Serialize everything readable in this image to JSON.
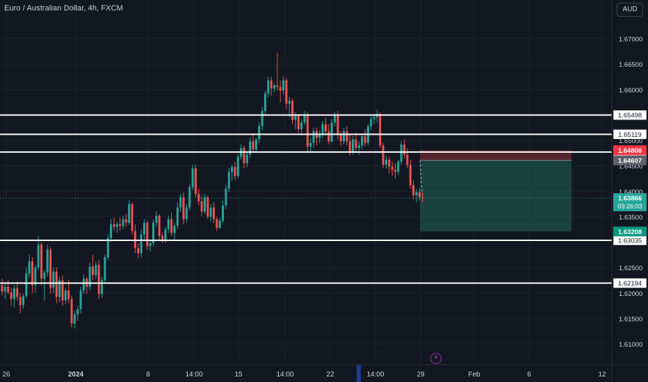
{
  "header": {
    "title": "Euro / Australian Dollar, 4h, FXCM",
    "currency": "AUD"
  },
  "toolbar": {
    "lightning_icon": "lightning-icon"
  },
  "colors": {
    "background": "#131722",
    "grid": "#1e222d",
    "axis_text": "#d1d4dc",
    "up": "#26a69a",
    "down": "#ef5350",
    "level_line": "#ffffff",
    "profit_zone": "#1e5e55",
    "loss_zone": "#6b2a33",
    "current_price_badge": "#26a69a",
    "stop_badge": "#f23645",
    "entry_badge": "#5d606b",
    "target_badge": "#089981"
  },
  "chart_data": {
    "type": "candlestick",
    "symbol": "Euro / Australian Dollar",
    "interval": "4h",
    "source": "FXCM",
    "ylim": [
      1.6085,
      1.6735
    ],
    "y_ticks": [
      "1.67000",
      "1.66500",
      "1.66000",
      "1.65000",
      "1.64500",
      "1.64000",
      "1.63500",
      "1.62500",
      "1.62000",
      "1.61500",
      "1.61000"
    ],
    "x_tick_labels": [
      "26",
      "2024",
      "8",
      "14:00",
      "15",
      "14:00",
      "22",
      "14:00",
      "29",
      "Feb",
      "6",
      "12"
    ],
    "horizontal_levels": [
      {
        "price": 1.65498,
        "label": "1.65498"
      },
      {
        "price": 1.65119,
        "label": "1.65119"
      },
      {
        "price": 1.6477,
        "label": "1.64770"
      },
      {
        "price": 1.63035,
        "label": "1.63035"
      },
      {
        "price": 1.62194,
        "label": "1.62194"
      }
    ],
    "position": {
      "type": "short",
      "stop": {
        "price": 1.64806,
        "label": "1.64806"
      },
      "entry": {
        "price": 1.64607,
        "label": "1.64607"
      },
      "target": {
        "price": 1.63208,
        "label": "1.63208"
      }
    },
    "current_price": {
      "price": 1.63866,
      "label": "1.63866",
      "countdown": "03:26:03"
    },
    "candles": [
      [
        1.6215,
        1.6228,
        1.6195,
        1.6203
      ],
      [
        1.6203,
        1.6218,
        1.6188,
        1.6212
      ],
      [
        1.6212,
        1.6225,
        1.6198,
        1.6201
      ],
      [
        1.6201,
        1.621,
        1.6175,
        1.6188
      ],
      [
        1.6188,
        1.6215,
        1.6172,
        1.6209
      ],
      [
        1.6209,
        1.6222,
        1.6185,
        1.6192
      ],
      [
        1.6192,
        1.62,
        1.616,
        1.6176
      ],
      [
        1.6176,
        1.6198,
        1.617,
        1.6194
      ],
      [
        1.6194,
        1.625,
        1.619,
        1.6238
      ],
      [
        1.6238,
        1.6275,
        1.623,
        1.6262
      ],
      [
        1.6262,
        1.627,
        1.62,
        1.6215
      ],
      [
        1.6215,
        1.6255,
        1.62,
        1.625
      ],
      [
        1.625,
        1.6312,
        1.6245,
        1.6295
      ],
      [
        1.6295,
        1.63,
        1.6215,
        1.6228
      ],
      [
        1.6228,
        1.6245,
        1.6185,
        1.624
      ],
      [
        1.624,
        1.6295,
        1.6232,
        1.6285
      ],
      [
        1.6285,
        1.629,
        1.6198,
        1.621
      ],
      [
        1.621,
        1.625,
        1.62,
        1.6242
      ],
      [
        1.6242,
        1.625,
        1.618,
        1.6192
      ],
      [
        1.6192,
        1.6232,
        1.6182,
        1.6225
      ],
      [
        1.6225,
        1.6235,
        1.6175,
        1.6185
      ],
      [
        1.6185,
        1.621,
        1.6178,
        1.6205
      ],
      [
        1.6205,
        1.6226,
        1.618,
        1.6188
      ],
      [
        1.6188,
        1.6195,
        1.6132,
        1.614
      ],
      [
        1.614,
        1.6165,
        1.613,
        1.6158
      ],
      [
        1.6158,
        1.6175,
        1.6145,
        1.6168
      ],
      [
        1.6168,
        1.6212,
        1.616,
        1.6205
      ],
      [
        1.6205,
        1.6238,
        1.6198,
        1.6228
      ],
      [
        1.6228,
        1.6232,
        1.6198,
        1.6212
      ],
      [
        1.6212,
        1.626,
        1.6205,
        1.6252
      ],
      [
        1.6252,
        1.6275,
        1.6225,
        1.6235
      ],
      [
        1.6235,
        1.6262,
        1.6228,
        1.6255
      ],
      [
        1.6255,
        1.6265,
        1.6188,
        1.6198
      ],
      [
        1.6198,
        1.6232,
        1.619,
        1.6225
      ],
      [
        1.6225,
        1.6275,
        1.622,
        1.627
      ],
      [
        1.627,
        1.6315,
        1.6265,
        1.6308
      ],
      [
        1.6308,
        1.6345,
        1.63,
        1.6335
      ],
      [
        1.6335,
        1.6348,
        1.6322,
        1.633
      ],
      [
        1.633,
        1.634,
        1.6318,
        1.6335
      ],
      [
        1.6335,
        1.6348,
        1.6322,
        1.6332
      ],
      [
        1.6332,
        1.6352,
        1.6325,
        1.6345
      ],
      [
        1.6345,
        1.6355,
        1.633,
        1.6338
      ],
      [
        1.6338,
        1.6382,
        1.6334,
        1.6375
      ],
      [
        1.6375,
        1.6378,
        1.6315,
        1.6322
      ],
      [
        1.6322,
        1.6335,
        1.6278,
        1.6288
      ],
      [
        1.6288,
        1.6298,
        1.6268,
        1.6278
      ],
      [
        1.6278,
        1.6325,
        1.627,
        1.6315
      ],
      [
        1.6315,
        1.6345,
        1.6305,
        1.6338
      ],
      [
        1.6338,
        1.6342,
        1.6285,
        1.6292
      ],
      [
        1.6292,
        1.6305,
        1.6282,
        1.6298
      ],
      [
        1.6298,
        1.6345,
        1.6292,
        1.6338
      ],
      [
        1.6338,
        1.636,
        1.633,
        1.6352
      ],
      [
        1.6352,
        1.6355,
        1.6305,
        1.6312
      ],
      [
        1.6312,
        1.6318,
        1.6298,
        1.6305
      ],
      [
        1.6305,
        1.633,
        1.6298,
        1.6325
      ],
      [
        1.6325,
        1.6352,
        1.6318,
        1.6345
      ],
      [
        1.6345,
        1.6358,
        1.6312,
        1.6318
      ],
      [
        1.6318,
        1.6338,
        1.6305,
        1.6332
      ],
      [
        1.6332,
        1.6378,
        1.6325,
        1.6368
      ],
      [
        1.6368,
        1.6395,
        1.636,
        1.6388
      ],
      [
        1.6388,
        1.6398,
        1.6335,
        1.6345
      ],
      [
        1.6345,
        1.6375,
        1.6338,
        1.6368
      ],
      [
        1.6368,
        1.6415,
        1.6362,
        1.6408
      ],
      [
        1.6408,
        1.6452,
        1.6402,
        1.6445
      ],
      [
        1.6445,
        1.6452,
        1.6388,
        1.6395
      ],
      [
        1.6395,
        1.6405,
        1.6372,
        1.638
      ],
      [
        1.638,
        1.6392,
        1.6352,
        1.636
      ],
      [
        1.636,
        1.6395,
        1.6355,
        1.6388
      ],
      [
        1.6388,
        1.6392,
        1.6345,
        1.635
      ],
      [
        1.635,
        1.6375,
        1.634,
        1.6368
      ],
      [
        1.6368,
        1.6378,
        1.6338,
        1.6345
      ],
      [
        1.6345,
        1.635,
        1.6322,
        1.6328
      ],
      [
        1.6328,
        1.6348,
        1.6325,
        1.6342
      ],
      [
        1.6342,
        1.6382,
        1.6338,
        1.6372
      ],
      [
        1.6372,
        1.6412,
        1.6365,
        1.6405
      ],
      [
        1.6405,
        1.6445,
        1.6398,
        1.6438
      ],
      [
        1.6438,
        1.6452,
        1.642,
        1.6448
      ],
      [
        1.6448,
        1.6458,
        1.6422,
        1.643
      ],
      [
        1.643,
        1.6472,
        1.6425,
        1.6468
      ],
      [
        1.6468,
        1.6492,
        1.6462,
        1.6485
      ],
      [
        1.6485,
        1.649,
        1.6445,
        1.6455
      ],
      [
        1.6455,
        1.6478,
        1.6448,
        1.6472
      ],
      [
        1.6472,
        1.6505,
        1.6465,
        1.6498
      ],
      [
        1.6498,
        1.6512,
        1.6478,
        1.6482
      ],
      [
        1.6482,
        1.6505,
        1.6475,
        1.6502
      ],
      [
        1.6502,
        1.6535,
        1.6495,
        1.6528
      ],
      [
        1.6528,
        1.6565,
        1.652,
        1.6558
      ],
      [
        1.6558,
        1.6598,
        1.655,
        1.6592
      ],
      [
        1.6592,
        1.6625,
        1.6585,
        1.6618
      ],
      [
        1.6618,
        1.6625,
        1.6588,
        1.6602
      ],
      [
        1.6602,
        1.6612,
        1.6595,
        1.6608
      ],
      [
        1.6608,
        1.6672,
        1.6598,
        1.6605
      ],
      [
        1.6605,
        1.6618,
        1.6575,
        1.6598
      ],
      [
        1.6598,
        1.6625,
        1.659,
        1.6618
      ],
      [
        1.6618,
        1.6622,
        1.6562,
        1.6572
      ],
      [
        1.6572,
        1.6585,
        1.6545,
        1.6578
      ],
      [
        1.6578,
        1.6582,
        1.6532,
        1.654
      ],
      [
        1.654,
        1.6555,
        1.6522,
        1.6548
      ],
      [
        1.6548,
        1.6552,
        1.6515,
        1.6522
      ],
      [
        1.6522,
        1.6542,
        1.651,
        1.6535
      ],
      [
        1.6535,
        1.6558,
        1.653,
        1.655
      ],
      [
        1.655,
        1.6555,
        1.6478,
        1.6488
      ],
      [
        1.6488,
        1.6505,
        1.6475,
        1.6495
      ],
      [
        1.6495,
        1.6525,
        1.6485,
        1.6518
      ],
      [
        1.6518,
        1.6525,
        1.649,
        1.6505
      ],
      [
        1.6505,
        1.652,
        1.6495,
        1.6512
      ],
      [
        1.6512,
        1.6538,
        1.6505,
        1.6532
      ],
      [
        1.6532,
        1.6545,
        1.651,
        1.6518
      ],
      [
        1.6518,
        1.6532,
        1.6492,
        1.6498
      ],
      [
        1.6498,
        1.6542,
        1.6495,
        1.6535
      ],
      [
        1.6535,
        1.6555,
        1.6528,
        1.6548
      ],
      [
        1.6548,
        1.6558,
        1.6502,
        1.6512
      ],
      [
        1.6512,
        1.6518,
        1.6488,
        1.6498
      ],
      [
        1.6498,
        1.6525,
        1.6492,
        1.6518
      ],
      [
        1.6518,
        1.6528,
        1.649,
        1.6498
      ],
      [
        1.6498,
        1.6512,
        1.647,
        1.6478
      ],
      [
        1.6478,
        1.6508,
        1.6472,
        1.6502
      ],
      [
        1.6502,
        1.6515,
        1.6475,
        1.6485
      ],
      [
        1.6485,
        1.6498,
        1.6472,
        1.649
      ],
      [
        1.649,
        1.6512,
        1.6482,
        1.6508
      ],
      [
        1.6508,
        1.6522,
        1.6488,
        1.6495
      ],
      [
        1.6495,
        1.6532,
        1.649,
        1.6528
      ],
      [
        1.6528,
        1.6548,
        1.652,
        1.6542
      ],
      [
        1.6542,
        1.6552,
        1.6532,
        1.6546
      ],
      [
        1.6546,
        1.656,
        1.6535,
        1.6552
      ],
      [
        1.6552,
        1.6555,
        1.6485,
        1.649
      ],
      [
        1.649,
        1.6495,
        1.6445,
        1.6452
      ],
      [
        1.6452,
        1.647,
        1.6445,
        1.6462
      ],
      [
        1.6462,
        1.6468,
        1.6435,
        1.6448
      ],
      [
        1.6448,
        1.6458,
        1.643,
        1.6442
      ],
      [
        1.6442,
        1.6455,
        1.6425,
        1.6438
      ],
      [
        1.6438,
        1.6462,
        1.6432,
        1.6458
      ],
      [
        1.6458,
        1.6498,
        1.6452,
        1.6492
      ],
      [
        1.6492,
        1.6502,
        1.6465,
        1.6472
      ],
      [
        1.6472,
        1.6485,
        1.6445,
        1.6452
      ],
      [
        1.6452,
        1.6462,
        1.6405,
        1.6412
      ],
      [
        1.6412,
        1.6422,
        1.6385,
        1.6392
      ],
      [
        1.6392,
        1.6405,
        1.6378,
        1.6398
      ],
      [
        1.6398,
        1.6405,
        1.6382,
        1.6388
      ],
      [
        1.6388,
        1.6398,
        1.6378,
        1.63866
      ]
    ]
  }
}
